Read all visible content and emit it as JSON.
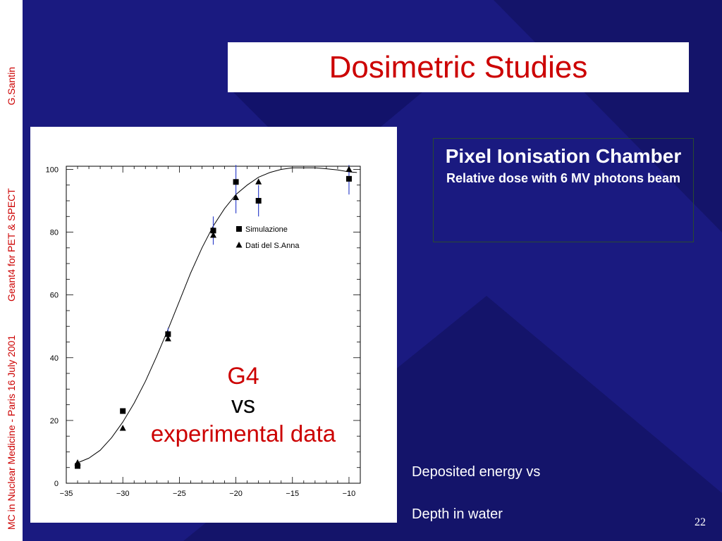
{
  "sidebar": {
    "footer_left": "MC in Nuclear Medicine - Paris 16 July 2001",
    "footer_mid": "Geant4 for PET & SPECT",
    "footer_right": "G.Santin"
  },
  "title": "Dosimetric Studies",
  "chart_overlay": {
    "line1": "G4",
    "line2": "vs",
    "line3": "experimental data"
  },
  "info_box": {
    "heading": "Pixel Ionisation Chamber",
    "subheading": "Relative dose with 6 MV photons beam"
  },
  "captions": {
    "line1": "Deposited energy vs",
    "line2": "Depth in water"
  },
  "page_number": "22",
  "colors": {
    "background": "#1a1a80",
    "title_red": "#cc0000",
    "error_bar_blue": "#3344cc"
  },
  "chart_data": {
    "type": "scatter",
    "title": "",
    "xlabel": "",
    "ylabel": "",
    "xlim": [
      -35,
      -9
    ],
    "ylim": [
      0,
      101
    ],
    "x_ticks": [
      -35,
      -30,
      -25,
      -20,
      -15,
      -10
    ],
    "y_ticks": [
      0,
      20,
      40,
      60,
      80,
      100
    ],
    "legend": [
      {
        "name": "Simulazione",
        "marker": "square"
      },
      {
        "name": "Dati del S.Anna",
        "marker": "triangle"
      }
    ],
    "series": [
      {
        "name": "Simulazione",
        "marker": "square",
        "points": [
          {
            "x": -34,
            "y": 5.5,
            "err": 0.8
          },
          {
            "x": -30,
            "y": 23,
            "err": 0.8
          },
          {
            "x": -26,
            "y": 47.5,
            "err": 2
          },
          {
            "x": -22,
            "y": 80.5,
            "err": 4.5
          },
          {
            "x": -20,
            "y": 96,
            "err": 10
          },
          {
            "x": -18,
            "y": 90,
            "err": 5
          },
          {
            "x": -10,
            "y": 97,
            "err": 5
          }
        ]
      },
      {
        "name": "Dati del S.Anna",
        "marker": "triangle",
        "points": [
          {
            "x": -34,
            "y": 6.5
          },
          {
            "x": -30,
            "y": 17.5
          },
          {
            "x": -26,
            "y": 46
          },
          {
            "x": -22,
            "y": 79
          },
          {
            "x": -20,
            "y": 91
          },
          {
            "x": -18,
            "y": 96
          },
          {
            "x": -10,
            "y": 100
          }
        ]
      }
    ],
    "fit_curve": {
      "x": [
        -34,
        -33,
        -32,
        -31,
        -30,
        -29,
        -28,
        -27,
        -26,
        -25,
        -24,
        -23,
        -22,
        -21,
        -20,
        -19,
        -18,
        -17,
        -16,
        -15,
        -14,
        -13,
        -12,
        -11,
        -10,
        -9.3
      ],
      "y": [
        6.5,
        8,
        10.5,
        14.5,
        19.5,
        25.5,
        32.5,
        40.5,
        49,
        58,
        67,
        75,
        82,
        87.5,
        92,
        95,
        97.5,
        99,
        100,
        100.5,
        100.5,
        100.5,
        100.2,
        99.8,
        99.2,
        99
      ]
    }
  }
}
